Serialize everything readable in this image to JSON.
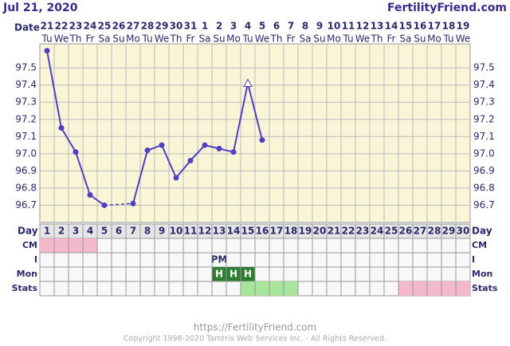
{
  "chart_data": {
    "type": "line",
    "title": "Jul 21, 2020",
    "site": "FertilityFriend.com",
    "x_label": "Date",
    "categories": [
      "21",
      "22",
      "23",
      "24",
      "25",
      "26",
      "27",
      "28",
      "29",
      "30",
      "31",
      "1",
      "2",
      "3",
      "4",
      "5",
      "6",
      "7",
      "8",
      "9",
      "10",
      "11",
      "12",
      "13",
      "14",
      "15",
      "16",
      "17",
      "18",
      "19"
    ],
    "weekdays": [
      "Tu",
      "We",
      "Th",
      "Fr",
      "Sa",
      "Su",
      "Mo",
      "Tu",
      "We",
      "Th",
      "Fr",
      "Sa",
      "Su",
      "Mo",
      "Tu",
      "We",
      "Th",
      "Fr",
      "Sa",
      "Su",
      "Mo",
      "Tu",
      "We",
      "Th",
      "Fr",
      "Sa",
      "Su",
      "Mo",
      "Tu",
      "We"
    ],
    "series": [
      {
        "color": "#4f3fc4",
        "values": [
          97.6,
          97.15,
          97.01,
          96.76,
          96.7,
          null,
          96.71,
          97.02,
          97.05,
          96.86,
          96.96,
          97.05,
          97.03,
          97.01,
          97.41,
          97.08,
          null,
          null,
          null,
          null,
          null,
          null,
          null,
          null,
          null,
          null,
          null,
          null,
          null,
          null
        ]
      }
    ],
    "triangle_days": [
      15
    ],
    "ylim": [
      96.6,
      97.64
    ],
    "yticks": [
      96.7,
      96.8,
      96.9,
      {
        "value": 97.0,
        "label": "97.0"
      },
      97.1,
      97.2,
      97.3,
      97.4,
      97.5
    ],
    "day_label": "Day",
    "cycle_days": [
      1,
      2,
      3,
      4,
      5,
      6,
      7,
      8,
      9,
      10,
      11,
      12,
      13,
      14,
      15,
      16,
      17,
      18,
      19,
      20,
      21,
      22,
      23,
      24,
      25,
      26,
      27,
      28,
      29,
      30
    ],
    "rows": [
      {
        "label": "CM",
        "marks": [
          {
            "color": "#f4b8cc",
            "days": [
              1,
              2,
              3,
              4
            ]
          }
        ]
      },
      {
        "label": "I",
        "marks": [
          {
            "text": "PM",
            "days": [
              13
            ]
          }
        ]
      },
      {
        "label": "Mon",
        "marks": [
          {
            "color": "#2f7d32",
            "text": "H",
            "days": [
              13,
              14,
              15
            ]
          }
        ]
      },
      {
        "label": "Stats",
        "marks": [
          {
            "color": "#a8e49a",
            "days": [
              15,
              16,
              17,
              18
            ]
          },
          {
            "color": "#f4b8cc",
            "days": [
              26,
              27,
              28,
              29,
              30
            ]
          }
        ]
      }
    ]
  },
  "footer": {
    "url": "https://FertilityFriend.com",
    "copyright": "Copyright 1998-2020 Tamtris Web Services Inc. - All Rights Reserved."
  }
}
